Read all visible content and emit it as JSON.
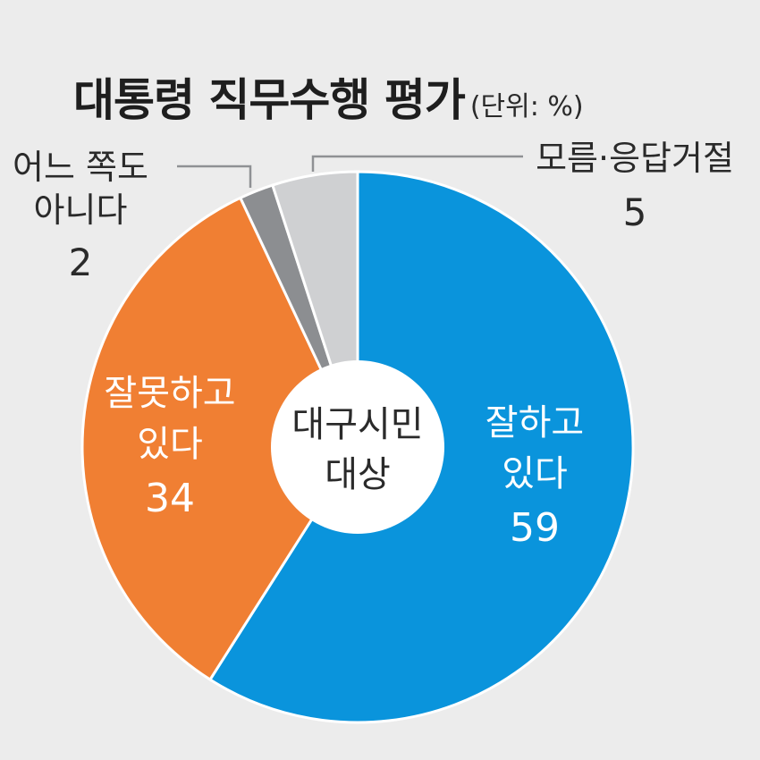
{
  "chart_data": {
    "type": "pie",
    "style": "donut",
    "title": "대통령 직무수행 평가",
    "unit": "(단위: %)",
    "center_label": [
      "대구시민",
      "대상"
    ],
    "slices": [
      {
        "label_lines": [
          "잘하고",
          "있다"
        ],
        "value": 59,
        "color": "#0a94dc"
      },
      {
        "label_lines": [
          "잘못하고",
          "있다"
        ],
        "value": 34,
        "color": "#f07f33"
      },
      {
        "label_lines": [
          "어느 쪽도",
          "아니다"
        ],
        "value": 2,
        "color": "#8c8e91"
      },
      {
        "label_lines": [
          "모름·응답거절"
        ],
        "value": 5,
        "color": "#cfd0d2"
      }
    ]
  }
}
